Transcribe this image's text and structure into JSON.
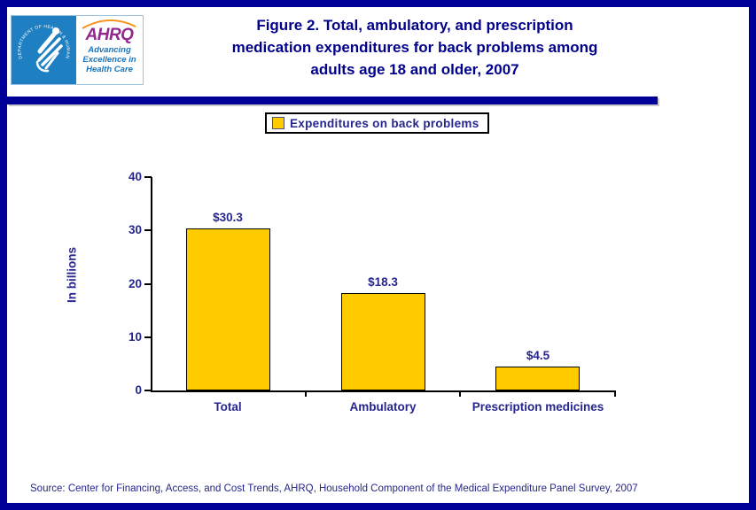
{
  "page": {
    "border_color": "#000099",
    "background_color": "#FFFFFF"
  },
  "header": {
    "logo": {
      "hhs_seal_text": "DEPARTMENT OF HEALTH & HUMAN SERVICES - USA",
      "ahrq_acronym": "AHRQ",
      "tagline": "Advancing\nExcellence in\nHealth Care",
      "colors": {
        "hhs_blue": "#1E7FC2",
        "ahrq_purple": "#92278F",
        "tagline_blue": "#1B75BC",
        "arc_orange": "#F7941E"
      }
    },
    "title": "Figure 2. Total, ambulatory, and prescription\nmedication expenditures for back problems among\nadults age 18 and older, 2007",
    "title_color": "#00008B"
  },
  "legend": {
    "items": [
      {
        "label": "Expenditures on back problems",
        "swatch_color": "#FFCC00"
      }
    ]
  },
  "chart_data": {
    "type": "bar",
    "title": "Figure 2. Total, ambulatory, and prescription medication expenditures for back problems among adults age 18 and older, 2007",
    "categories": [
      "Total",
      "Ambulatory",
      "Prescription medicines"
    ],
    "values": [
      30.3,
      18.3,
      4.5
    ],
    "value_labels": [
      "$30.3",
      "$18.3",
      "$4.5"
    ],
    "series_name": "Expenditures on back problems",
    "xlabel": "",
    "ylabel": "In billions",
    "ylim": [
      0,
      40
    ],
    "yticks": [
      0,
      10,
      20,
      30,
      40
    ],
    "grid": false,
    "legend_position": "top-center",
    "bar_color": "#FFCC00",
    "bar_border_color": "#000000",
    "axis_color": "#000000",
    "text_color": "#26268C"
  },
  "footer": {
    "source": "Source: Center for Financing, Access, and Cost Trends, AHRQ, Household Component of the Medical Expenditure Panel Survey, 2007"
  }
}
